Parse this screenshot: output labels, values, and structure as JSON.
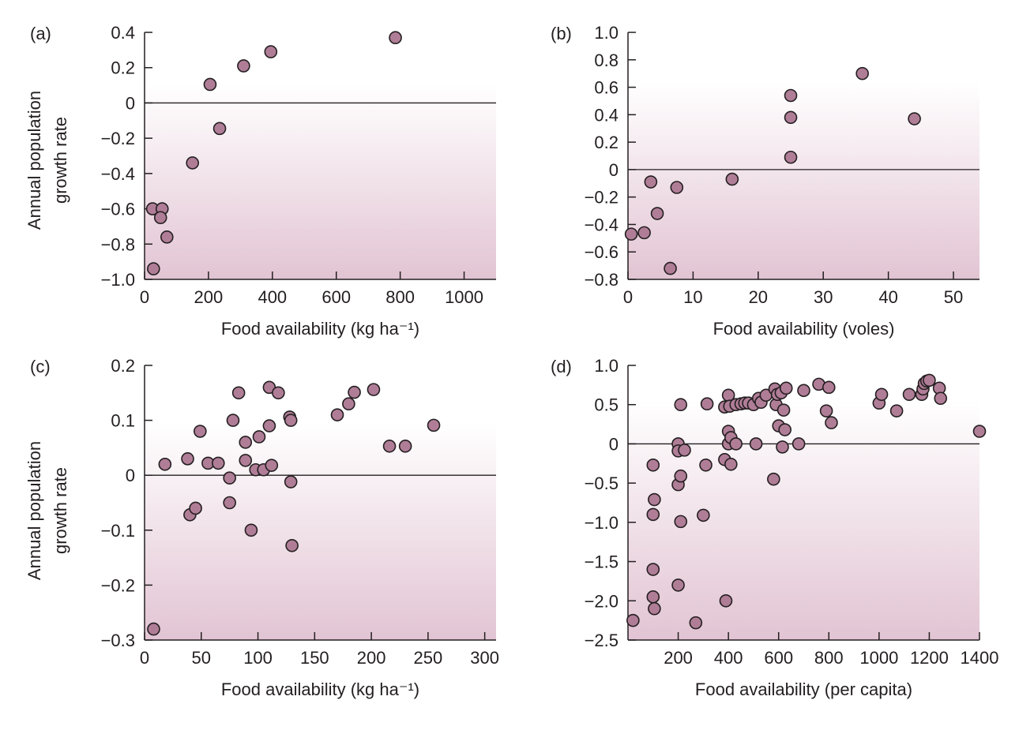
{
  "figure": {
    "y_axis_label_line1": "Annual population",
    "y_axis_label_line2": "growth rate"
  },
  "colors": {
    "marker_fill": "#b07d97",
    "marker_edge": "#231f20",
    "shade_top": "#ffffff",
    "shade_bottom": "#e2c4d3",
    "axis": "#231f20"
  },
  "chart_data": [
    {
      "type": "scatter",
      "panel_label": "(a)",
      "xlabel": "Food availability (kg ha⁻¹)",
      "ylabel": "Annual population growth rate",
      "xlim": [
        0,
        1100
      ],
      "ylim": [
        -1.0,
        0.4
      ],
      "xticks": [
        0,
        200,
        400,
        600,
        800,
        1000
      ],
      "xtick_labels": [
        "0",
        "200",
        "400",
        "600",
        "800",
        "1000"
      ],
      "yticks": [
        0.4,
        0.2,
        0,
        -0.2,
        -0.4,
        -0.6,
        -0.8,
        -1.0
      ],
      "ytick_labels": [
        "0.4",
        "0.2",
        "0",
        "−0.2",
        "−0.4",
        "−0.6",
        "−0.8",
        "−1.0"
      ],
      "zero_line": true,
      "shade_from_y": 0.1,
      "points": [
        [
          785,
          0.37
        ],
        [
          395,
          0.29
        ],
        [
          310,
          0.21
        ],
        [
          205,
          0.105
        ],
        [
          235,
          -0.145
        ],
        [
          150,
          -0.34
        ],
        [
          25,
          -0.6
        ],
        [
          55,
          -0.6
        ],
        [
          50,
          -0.65
        ],
        [
          70,
          -0.76
        ],
        [
          28,
          -0.94
        ]
      ]
    },
    {
      "type": "scatter",
      "panel_label": "(b)",
      "xlabel": "Food availability (voles)",
      "ylabel": "",
      "xlim": [
        0,
        54
      ],
      "ylim": [
        -0.8,
        1.0
      ],
      "xticks": [
        0,
        10,
        20,
        30,
        40,
        50
      ],
      "xtick_labels": [
        "0",
        "10",
        "20",
        "30",
        "40",
        "50"
      ],
      "yticks": [
        1.0,
        0.8,
        0.6,
        0.4,
        0.2,
        0,
        -0.2,
        -0.4,
        -0.6,
        -0.8
      ],
      "ytick_labels": [
        "1.0",
        "0.8",
        "0.6",
        "0.4",
        "0.2",
        "0",
        "−0.2",
        "−0.4",
        "−0.6",
        "−0.8"
      ],
      "zero_line": true,
      "shade_from_y": 0.63,
      "points": [
        [
          36,
          0.7
        ],
        [
          25,
          0.54
        ],
        [
          25,
          0.38
        ],
        [
          44,
          0.37
        ],
        [
          25,
          0.09
        ],
        [
          16,
          -0.07
        ],
        [
          3.5,
          -0.09
        ],
        [
          7.5,
          -0.13
        ],
        [
          4.5,
          -0.32
        ],
        [
          0.5,
          -0.47
        ],
        [
          2.5,
          -0.46
        ],
        [
          6.5,
          -0.72
        ]
      ]
    },
    {
      "type": "scatter",
      "panel_label": "(c)",
      "xlabel": "Food availability (kg ha⁻¹)",
      "ylabel": "Annual population growth rate",
      "xlim": [
        0,
        310
      ],
      "ylim": [
        -0.3,
        0.2
      ],
      "xticks": [
        0,
        50,
        100,
        150,
        200,
        250,
        300
      ],
      "xtick_labels": [
        "0",
        "50",
        "100",
        "150",
        "200",
        "250",
        "300"
      ],
      "yticks": [
        0.2,
        0.1,
        0,
        -0.1,
        -0.2,
        -0.3
      ],
      "ytick_labels": [
        "0.2",
        "0.1",
        "0",
        "−0.1",
        "−0.2",
        "−0.3"
      ],
      "zero_line": true,
      "shade_from_y": 0.095,
      "points": [
        [
          8,
          -0.28
        ],
        [
          18,
          0.02
        ],
        [
          38,
          0.03
        ],
        [
          40,
          -0.072
        ],
        [
          45,
          -0.06
        ],
        [
          49,
          0.08
        ],
        [
          56,
          0.022
        ],
        [
          65,
          0.022
        ],
        [
          75,
          -0.005
        ],
        [
          75,
          -0.05
        ],
        [
          78,
          0.1
        ],
        [
          83,
          0.15
        ],
        [
          89,
          0.06
        ],
        [
          89,
          0.027
        ],
        [
          94,
          -0.1
        ],
        [
          98,
          0.01
        ],
        [
          101,
          0.07
        ],
        [
          105,
          0.01
        ],
        [
          110,
          0.09
        ],
        [
          110,
          0.16
        ],
        [
          112,
          0.018
        ],
        [
          118,
          0.15
        ],
        [
          128,
          0.106
        ],
        [
          129,
          0.1
        ],
        [
          129,
          -0.012
        ],
        [
          130,
          -0.128
        ],
        [
          170,
          0.11
        ],
        [
          180,
          0.13
        ],
        [
          185,
          0.151
        ],
        [
          202,
          0.156
        ],
        [
          216,
          0.053
        ],
        [
          230,
          0.053
        ],
        [
          255,
          0.091
        ]
      ]
    },
    {
      "type": "scatter",
      "panel_label": "(d)",
      "xlabel": "Food availability (per capita)",
      "ylabel": "",
      "xlim": [
        0,
        1400
      ],
      "ylim": [
        -2.5,
        1.0
      ],
      "xticks": [
        200,
        400,
        600,
        800,
        1000,
        1200,
        1400
      ],
      "xtick_labels": [
        "200",
        "400",
        "600",
        "800",
        "1000",
        "1200",
        "1400"
      ],
      "yticks": [
        1.0,
        0.5,
        0,
        -0.5,
        -1.0,
        -1.5,
        -2.0,
        -2.5
      ],
      "ytick_labels": [
        "1.0",
        "0.5",
        "0",
        "−0.5",
        "−1.0",
        "−1.5",
        "−2.0",
        "−2.5"
      ],
      "zero_line": true,
      "shade_from_y": 0.55,
      "points": [
        [
          20,
          -2.25
        ],
        [
          100,
          -0.27
        ],
        [
          100,
          -0.9
        ],
        [
          100,
          -1.6
        ],
        [
          100,
          -1.95
        ],
        [
          105,
          -0.71
        ],
        [
          105,
          -2.1
        ],
        [
          200,
          0.0
        ],
        [
          200,
          -0.09
        ],
        [
          200,
          -0.52
        ],
        [
          200,
          -1.8
        ],
        [
          210,
          0.5
        ],
        [
          210,
          -0.99
        ],
        [
          210,
          -0.41
        ],
        [
          225,
          -0.08
        ],
        [
          270,
          -2.28
        ],
        [
          300,
          -0.91
        ],
        [
          310,
          -0.27
        ],
        [
          315,
          0.51
        ],
        [
          385,
          0.47
        ],
        [
          385,
          -0.2
        ],
        [
          390,
          -2.0
        ],
        [
          400,
          0.62
        ],
        [
          400,
          0.0
        ],
        [
          400,
          0.16
        ],
        [
          405,
          0.48
        ],
        [
          410,
          0.08
        ],
        [
          410,
          -0.26
        ],
        [
          430,
          0.0
        ],
        [
          430,
          0.5
        ],
        [
          450,
          0.51
        ],
        [
          465,
          0.52
        ],
        [
          480,
          0.52
        ],
        [
          500,
          0.5
        ],
        [
          510,
          0.0
        ],
        [
          520,
          0.58
        ],
        [
          530,
          0.53
        ],
        [
          550,
          0.62
        ],
        [
          580,
          -0.45
        ],
        [
          585,
          0.7
        ],
        [
          590,
          0.5
        ],
        [
          595,
          0.63
        ],
        [
          600,
          0.23
        ],
        [
          610,
          0.65
        ],
        [
          615,
          -0.04
        ],
        [
          620,
          0.43
        ],
        [
          625,
          0.18
        ],
        [
          630,
          0.71
        ],
        [
          680,
          0.0
        ],
        [
          700,
          0.68
        ],
        [
          760,
          0.76
        ],
        [
          790,
          0.42
        ],
        [
          800,
          0.72
        ],
        [
          810,
          0.27
        ],
        [
          1000,
          0.52
        ],
        [
          1010,
          0.63
        ],
        [
          1070,
          0.42
        ],
        [
          1120,
          0.63
        ],
        [
          1170,
          0.63
        ],
        [
          1175,
          0.7
        ],
        [
          1180,
          0.77
        ],
        [
          1190,
          0.8
        ],
        [
          1200,
          0.81
        ],
        [
          1240,
          0.71
        ],
        [
          1245,
          0.58
        ],
        [
          1400,
          0.16
        ]
      ]
    }
  ]
}
